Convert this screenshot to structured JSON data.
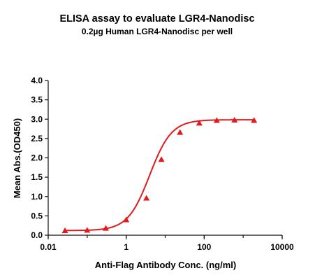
{
  "chart_data": {
    "type": "scatter",
    "title": "ELISA assay to evaluate LGR4-Nanodisc",
    "subtitle": "0.2µg Human LGR4-Nanodisc per well",
    "xlabel": "Anti-Flag Antibody Conc. (ng/ml)",
    "ylabel": "Mean Abs.(OD450)",
    "x_scale": "log",
    "xlim": [
      0.01,
      10000
    ],
    "ylim": [
      0.0,
      4.0
    ],
    "x_ticks": [
      0.01,
      1,
      100,
      10000
    ],
    "x_tick_labels": [
      "0.01",
      "1",
      "100",
      "10000"
    ],
    "y_ticks": [
      0.0,
      0.5,
      1.0,
      1.5,
      2.0,
      2.5,
      3.0,
      3.5,
      4.0
    ],
    "y_tick_labels": [
      "0.0",
      "0.5",
      "1.0",
      "1.5",
      "2.0",
      "2.5",
      "3.0",
      "3.5",
      "4.0"
    ],
    "grid": false,
    "marker": "triangle",
    "color": "#e31a1c",
    "fit": "four-parameter logistic curve",
    "series": [
      {
        "x": [
          0.027,
          0.1,
          0.3,
          1.0,
          3.3,
          8.0,
          24,
          75,
          210,
          600,
          1900
        ],
        "y": [
          0.12,
          0.13,
          0.18,
          0.4,
          0.96,
          1.96,
          2.66,
          2.9,
          2.97,
          2.98,
          2.97
        ]
      }
    ]
  }
}
